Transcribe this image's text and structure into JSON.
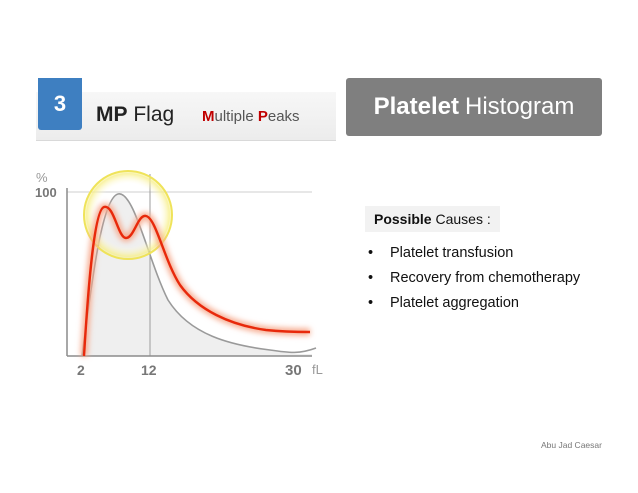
{
  "header": {
    "number": "3",
    "flag_bold": "MP",
    "flag_rest": " Flag",
    "subtitle": [
      {
        "text": "M",
        "highlight": true
      },
      {
        "text": "ultiple ",
        "highlight": false
      },
      {
        "text": "P",
        "highlight": true
      },
      {
        "text": "eaks",
        "highlight": false
      }
    ],
    "right_bold": "Platelet",
    "right_rest": "Histogram"
  },
  "diagram": {
    "y_unit": "%",
    "y_tick": "100",
    "x_ticks": [
      "2",
      "12",
      "30"
    ],
    "x_unit": "fL",
    "colors": {
      "normal_curve": "#9a9a9a",
      "mp_curve": "#e8290b",
      "glow": "#f6a98c",
      "highlight_circle": "#f2ea5a",
      "fill": "#efefef"
    }
  },
  "causes": {
    "heading_bold": "Possible",
    "heading_rest": " Causes :",
    "bullet": "•",
    "items": [
      "Platelet transfusion",
      "Recovery from chemotherapy",
      "Platelet aggregation"
    ]
  },
  "footer": {
    "author": "Abu Jad Caesar"
  }
}
